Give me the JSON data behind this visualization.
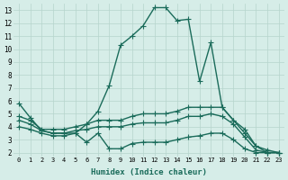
{
  "xlabel": "Humidex (Indice chaleur)",
  "background_color": "#d6ede8",
  "line_color": "#1a6b5a",
  "grid_color": "#b5d4cc",
  "x_ticks": [
    0,
    1,
    2,
    3,
    4,
    5,
    6,
    7,
    8,
    9,
    10,
    11,
    12,
    13,
    14,
    15,
    16,
    17,
    18,
    19,
    20,
    21,
    22,
    23
  ],
  "y_ticks": [
    2,
    3,
    4,
    5,
    6,
    7,
    8,
    9,
    10,
    11,
    12,
    13
  ],
  "ylim": [
    1.7,
    13.5
  ],
  "xlim": [
    -0.5,
    23.5
  ],
  "series": [
    {
      "x": [
        0,
        1,
        2,
        3,
        4,
        5,
        6,
        7,
        8,
        9,
        10,
        11,
        12,
        13,
        14,
        15,
        16,
        17,
        18,
        19,
        20,
        21,
        22,
        23
      ],
      "y": [
        5.8,
        4.7,
        3.7,
        3.5,
        3.5,
        3.5,
        4.2,
        5.2,
        7.2,
        10.3,
        11.0,
        11.8,
        13.2,
        13.2,
        12.2,
        12.3,
        7.5,
        10.5,
        5.5,
        4.5,
        3.8,
        2.5,
        2.0,
        2.0
      ]
    },
    {
      "x": [
        0,
        1,
        2,
        3,
        4,
        5,
        6,
        7,
        8,
        9,
        10,
        11,
        12,
        13,
        14,
        15,
        16,
        17,
        18,
        19,
        20,
        21,
        22,
        23
      ],
      "y": [
        4.8,
        4.5,
        3.8,
        3.8,
        3.8,
        4.0,
        4.2,
        4.5,
        4.5,
        4.5,
        4.8,
        5.0,
        5.0,
        5.0,
        5.2,
        5.5,
        5.5,
        5.5,
        5.5,
        4.5,
        3.5,
        2.5,
        2.2,
        2.0
      ]
    },
    {
      "x": [
        0,
        1,
        2,
        3,
        4,
        5,
        6,
        7,
        8,
        9,
        10,
        11,
        12,
        13,
        14,
        15,
        16,
        17,
        18,
        19,
        20,
        21,
        22,
        23
      ],
      "y": [
        4.5,
        4.2,
        3.7,
        3.5,
        3.5,
        3.7,
        3.8,
        4.0,
        4.0,
        4.0,
        4.2,
        4.3,
        4.3,
        4.3,
        4.5,
        4.8,
        4.8,
        5.0,
        4.8,
        4.2,
        3.2,
        2.2,
        2.0,
        2.0
      ]
    },
    {
      "x": [
        0,
        1,
        2,
        3,
        4,
        5,
        6,
        7,
        8,
        9,
        10,
        11,
        12,
        13,
        14,
        15,
        16,
        17,
        18,
        19,
        20,
        21,
        22,
        23
      ],
      "y": [
        4.0,
        3.8,
        3.5,
        3.3,
        3.3,
        3.5,
        2.8,
        3.5,
        2.3,
        2.3,
        2.7,
        2.8,
        2.8,
        2.8,
        3.0,
        3.2,
        3.3,
        3.5,
        3.5,
        3.0,
        2.3,
        2.0,
        2.0,
        2.0
      ]
    }
  ],
  "marker": "+",
  "markersize": 4,
  "linewidth": 1.0
}
